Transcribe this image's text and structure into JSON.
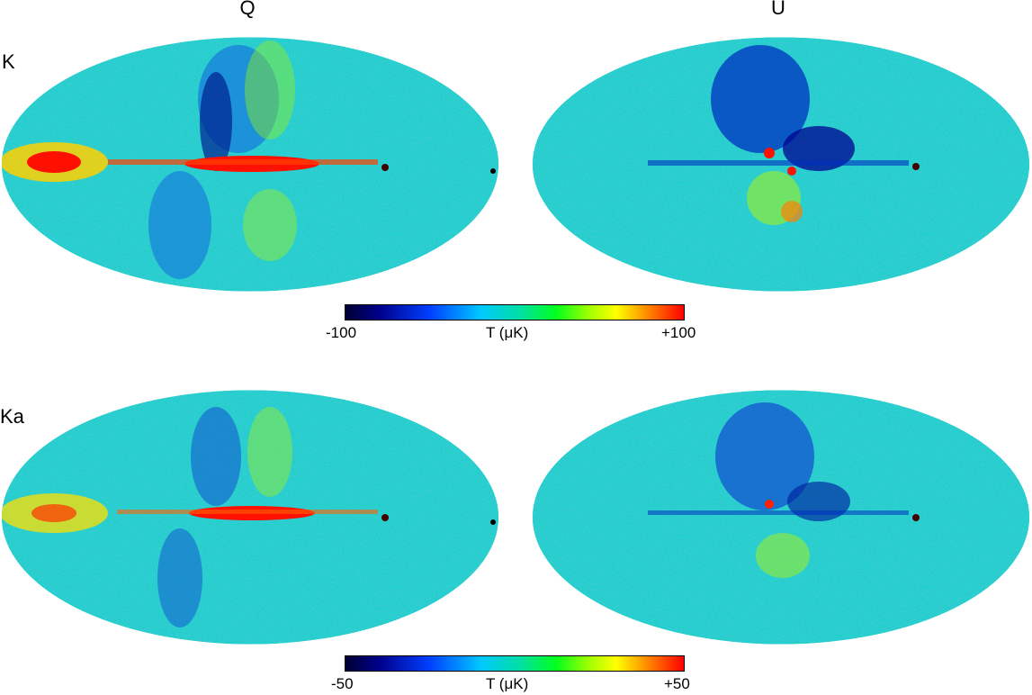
{
  "columns": {
    "left": "Q",
    "right": "U"
  },
  "rows": {
    "top": "K",
    "bottom": "Ka"
  },
  "colorbar_top": {
    "min_label": "-100",
    "max_label": "+100",
    "title": "T (μK)"
  },
  "colorbar_bottom": {
    "min_label": "-50",
    "max_label": "+50",
    "title": "T (μK)"
  },
  "colormap": [
    "#000033",
    "#00008c",
    "#0040ff",
    "#00c8ff",
    "#00e0a0",
    "#00ff20",
    "#a0ff00",
    "#ffff00",
    "#ff8000",
    "#ff0000"
  ]
}
